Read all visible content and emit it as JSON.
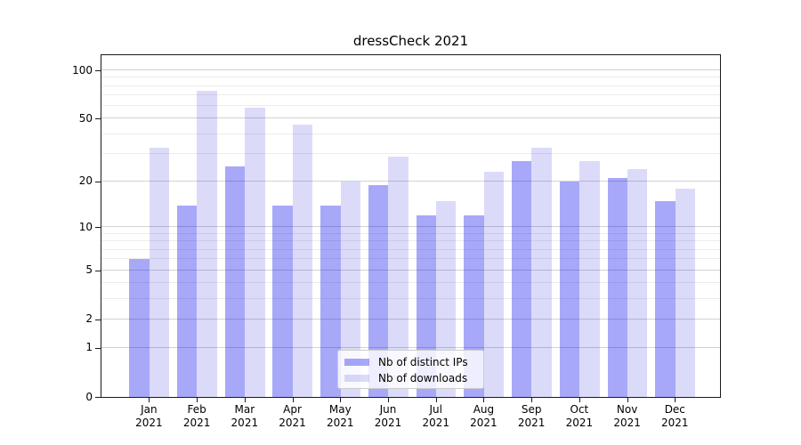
{
  "chart_data": {
    "type": "bar",
    "title": "dressCheck 2021",
    "x_categories": [
      "Jan",
      "Feb",
      "Mar",
      "Apr",
      "May",
      "Jun",
      "Jul",
      "Aug",
      "Sep",
      "Oct",
      "Nov",
      "Dec"
    ],
    "x_year": "2021",
    "series": [
      {
        "name": "Nb of distinct IPs",
        "color": "#0000ee",
        "opacity": 0.34,
        "values": [
          6,
          14,
          25,
          14,
          14,
          19,
          12,
          12,
          27,
          20,
          21,
          15
        ]
      },
      {
        "name": "Nb of downloads",
        "color": "#0000d2",
        "opacity": 0.14,
        "values": [
          33,
          75,
          59,
          46,
          20,
          29,
          15,
          23,
          33,
          27,
          24,
          18
        ]
      }
    ],
    "y_scale": "symlog",
    "y_ticks": [
      100,
      50,
      20,
      10,
      5,
      2,
      1,
      0
    ],
    "y_gridlines_minor": [
      3,
      4,
      6,
      7,
      8,
      9,
      30,
      40,
      60,
      70,
      80,
      90
    ],
    "ylim": [
      0,
      126
    ],
    "grid": "on",
    "legend_position": "lower center"
  }
}
